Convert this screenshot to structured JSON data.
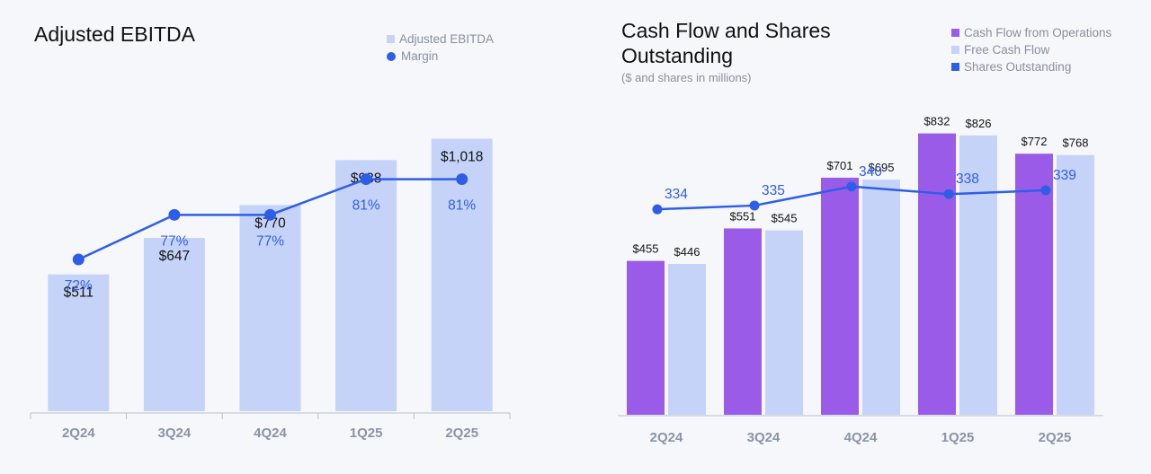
{
  "chart_data": [
    {
      "id": "ebitda",
      "type": "bar",
      "title": "Adjusted EBITDA",
      "categories": [
        "2Q24",
        "3Q24",
        "4Q24",
        "1Q25",
        "2Q25"
      ],
      "series": [
        {
          "name": "Adjusted EBITDA",
          "kind": "bar",
          "values": [
            511,
            647,
            770,
            938,
            1018
          ],
          "labels": [
            "$511",
            "$647",
            "$770",
            "$938",
            "$1,018"
          ],
          "color": "#c6d3f9"
        },
        {
          "name": "Margin",
          "kind": "line",
          "values": [
            72,
            77,
            77,
            81,
            81
          ],
          "labels": [
            "72%",
            "77%",
            "77%",
            "81%",
            "81%"
          ],
          "color": "#2e5ee6"
        }
      ],
      "ylim": [
        0,
        1100
      ],
      "margin_ylim": [
        55,
        88
      ],
      "grid": false,
      "legend_position": "top-right"
    },
    {
      "id": "cashflow",
      "type": "bar",
      "title": "Cash Flow and Shares Outstanding",
      "subtitle": "($ and shares in millions)",
      "categories": [
        "2Q24",
        "3Q24",
        "4Q24",
        "1Q25",
        "2Q25"
      ],
      "series": [
        {
          "name": "Cash Flow from Operations",
          "kind": "bar",
          "values": [
            455,
            551,
            701,
            832,
            772
          ],
          "labels": [
            "$455",
            "$551",
            "$701",
            "$832",
            "$772"
          ],
          "color": "#9a5ce8"
        },
        {
          "name": "Free Cash Flow",
          "kind": "bar",
          "values": [
            446,
            545,
            695,
            826,
            768
          ],
          "labels": [
            "$446",
            "$545",
            "$695",
            "$826",
            "$768"
          ],
          "color": "#c6d3f9"
        },
        {
          "name": "Shares Outstanding",
          "kind": "line",
          "values": [
            334,
            335,
            340,
            338,
            339
          ],
          "labels": [
            "334",
            "335",
            "340",
            "338",
            "339"
          ],
          "color": "#2e5ee6"
        }
      ],
      "ylim": [
        0,
        900
      ],
      "shares_ylim": [
        280,
        360
      ],
      "grid": false,
      "legend_position": "top-right"
    }
  ]
}
